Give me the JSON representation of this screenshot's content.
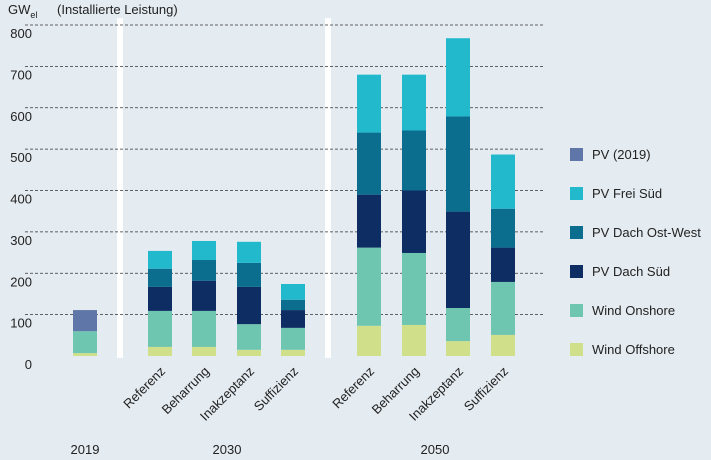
{
  "chart_data": {
    "type": "stacked_bar",
    "y_unit": {
      "main": "GW",
      "sub": "el"
    },
    "y_label": "(Installierte Leistung)",
    "categories": [
      null,
      "Referenz",
      "Beharrung",
      "Inakzeptanz",
      "Suffizienz",
      "Referenz",
      "Beharrung",
      "Inakzeptanz",
      "Suffizienz"
    ],
    "groups": [
      "2019",
      "2030",
      "2050"
    ],
    "series": [
      {
        "name": "Wind Offshore",
        "color": "#cfdf8a",
        "values": [
          7,
          22,
          22,
          15,
          15,
          73,
          75,
          36,
          51
        ]
      },
      {
        "name": "Wind Onshore",
        "color": "#6ec5b0",
        "values": [
          53,
          87,
          87,
          62,
          53,
          189,
          174,
          80,
          128
        ]
      },
      {
        "name": "PV Dach Süd",
        "color": "#0e2d63",
        "values": [
          null,
          58,
          73,
          90,
          43,
          128,
          151,
          233,
          83
        ]
      },
      {
        "name": "PV Dach Ost-West",
        "color": "#0b6e8e",
        "values": [
          null,
          44,
          50,
          58,
          25,
          150,
          145,
          230,
          94
        ]
      },
      {
        "name": "PV Frei Süd",
        "color": "#22b9cd",
        "values": [
          null,
          43,
          46,
          51,
          38,
          140,
          135,
          189,
          131
        ]
      },
      {
        "name": "PV (2019)",
        "color": "#5e76a8",
        "values": [
          51,
          null,
          null,
          null,
          null,
          null,
          null,
          null,
          null
        ]
      }
    ],
    "ylim": [
      0,
      800
    ],
    "yticks": [
      0,
      100,
      200,
      300,
      400,
      500,
      600,
      700,
      800
    ],
    "grid": true
  }
}
